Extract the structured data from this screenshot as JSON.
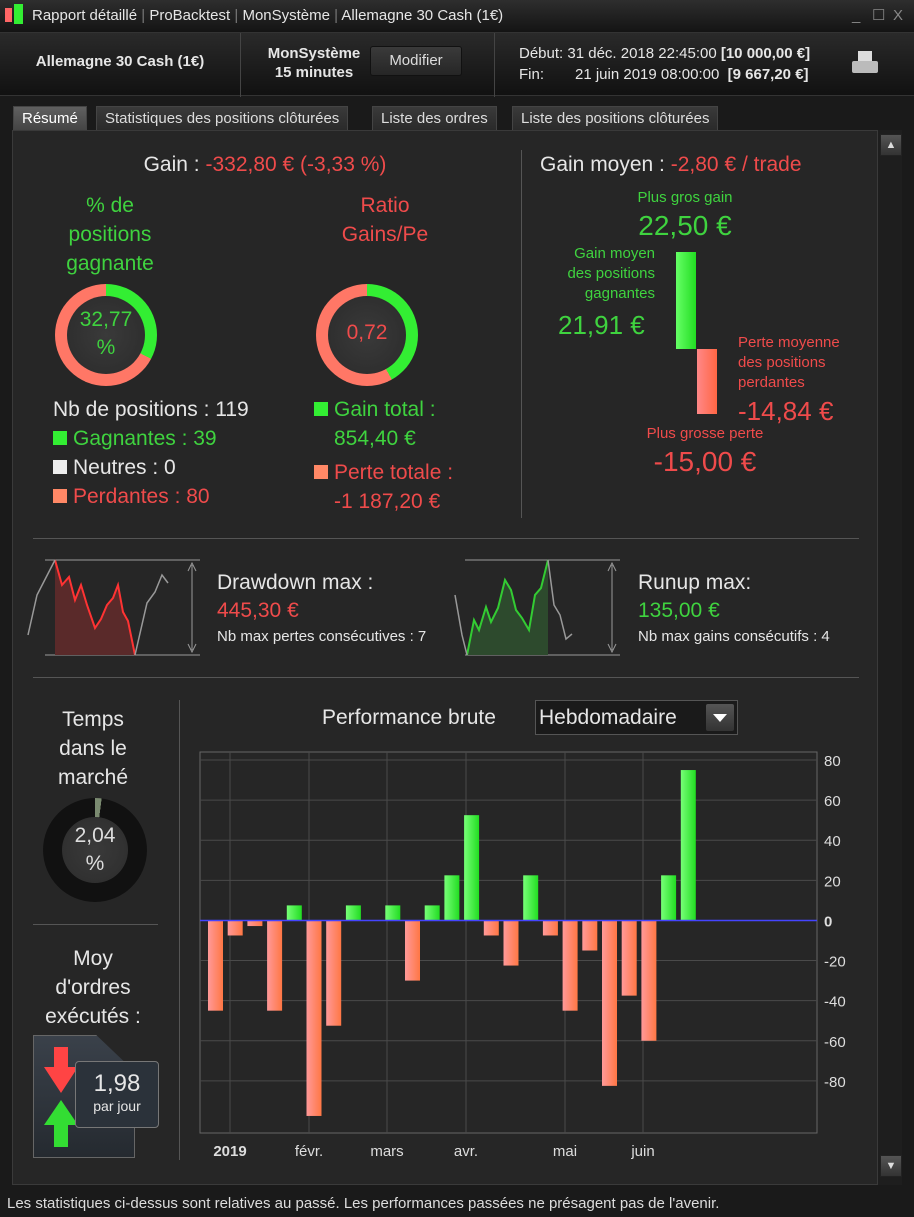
{
  "window": {
    "title_parts": [
      "Rapport détaillé",
      "ProBacktest",
      "MonSystème",
      "Allemagne 30 Cash (1€)"
    ],
    "controls": [
      "_",
      "☐",
      "X"
    ]
  },
  "header": {
    "instrument": "Allemagne 30 Cash (1€)",
    "system": "MonSystème",
    "timeframe": "15 minutes",
    "modify_label": "Modifier",
    "start_label": "Début:",
    "start_date": "31 déc. 2018 22:45:00",
    "start_capital": "[10 000,00 €]",
    "end_label": "Fin:",
    "end_date": "21 juin 2019 08:00:00",
    "end_capital": "[9 667,20 €]"
  },
  "tabs": [
    {
      "label": "Résumé",
      "active": true
    },
    {
      "label": "Statistiques des positions clôturées"
    },
    {
      "label": "Liste des ordres"
    },
    {
      "label": "Liste des positions clôturées"
    }
  ],
  "summary": {
    "gain_label": "Gain :",
    "gain_value": "-332,80 € (-3,33 %)",
    "win_pct_title": [
      "% de",
      "positions",
      "gagnante"
    ],
    "win_pct_value": "32,77",
    "win_pct_unit": "%",
    "win_pct": 32.77,
    "ratio_title": [
      "Ratio",
      "Gains/Pe"
    ],
    "ratio_value": "0,72",
    "ratio_fill_pct": 41.9,
    "nb_positions": "Nb de positions : 119",
    "winners": "Gagnantes : 39",
    "neutral": "Neutres : 0",
    "losers": "Perdantes : 80",
    "gain_total_label": "Gain total :",
    "gain_total": "854,40 €",
    "loss_total_label": "Perte totale :",
    "loss_total": "-1 187,20 €"
  },
  "avg": {
    "title_label": "Gain moyen :",
    "title_value": "-2,80 € / trade",
    "max_gain_label": "Plus gros gain",
    "max_gain": "22,50 €",
    "avg_win_label": [
      "Gain moyen",
      "des positions",
      "gagnantes"
    ],
    "avg_win": "21,91 €",
    "avg_loss_label": [
      "Perte moyenne",
      "des positions",
      "perdantes"
    ],
    "avg_loss": "-14,84 €",
    "max_loss_label": "Plus grosse perte",
    "max_loss": "-15,00 €"
  },
  "drawdown": {
    "title": "Drawdown max :",
    "value": "445,30 €",
    "sub": "Nb max pertes consécutives : 7"
  },
  "runup": {
    "title": "Runup max:",
    "value": "135,00 €",
    "sub": "Nb max gains consécutifs : 4"
  },
  "time_in_market": {
    "title": [
      "Temps",
      "dans le",
      "marché"
    ],
    "value": "2,04",
    "unit": "%",
    "pct": 2.04
  },
  "orders": {
    "title": [
      "Moy",
      "d'ordres",
      "exécutés :"
    ],
    "value": "1,98",
    "unit": "par jour"
  },
  "performance": {
    "title": "Performance brute",
    "period": "Hebdomadaire"
  },
  "colors": {
    "positive": "#3fe03f",
    "negative": "#ff7f6a",
    "loss_text": "#ef4b4b",
    "gain_text": "#3fd33f"
  },
  "chart_data": {
    "type": "bar",
    "title": "Performance brute",
    "x_tick_labels": [
      "2019",
      "févr.",
      "mars",
      "avr.",
      "mai",
      "juin"
    ],
    "values": [
      -45,
      -7.5,
      -2.8,
      -45,
      7.5,
      -97.5,
      -52.5,
      7.5,
      0,
      7.5,
      -30,
      7.5,
      22.5,
      52.5,
      -7.5,
      -22.5,
      22.5,
      -7.5,
      -45,
      -15,
      -82.5,
      -37.5,
      -60,
      22.5,
      75
    ],
    "y_ticks": [
      80,
      60,
      40,
      20,
      0,
      -20,
      -40,
      -60,
      -80
    ],
    "ylim": [
      -106,
      84
    ],
    "grid": true,
    "y_axis": "right"
  },
  "footer": "Les statistiques ci-dessus sont relatives au passé. Les performances passées ne présagent pas de l'avenir."
}
